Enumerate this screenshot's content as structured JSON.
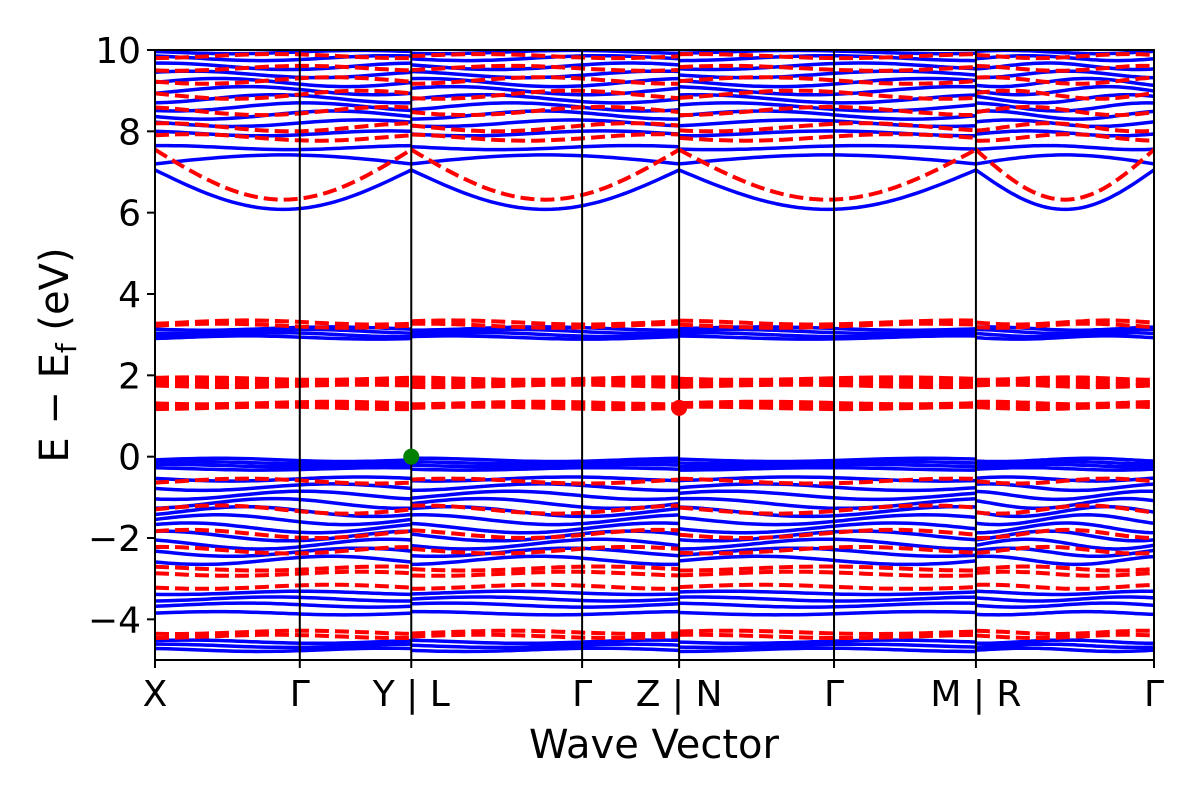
{
  "chart_data": {
    "type": "line",
    "title": "",
    "xlabel": "Wave Vector",
    "ylabel_main": "E − E",
    "ylabel_sub": "f",
    "ylabel_unit": " (eV)",
    "ylim": [
      -5,
      10
    ],
    "yticks": [
      {
        "value": -4,
        "label": "−4"
      },
      {
        "value": -2,
        "label": "−2"
      },
      {
        "value": 0,
        "label": "0"
      },
      {
        "value": 2,
        "label": "2"
      },
      {
        "value": 4,
        "label": "4"
      },
      {
        "value": 6,
        "label": "6"
      },
      {
        "value": 8,
        "label": "8"
      },
      {
        "value": 10,
        "label": "10"
      }
    ],
    "kpath_length": 6.9,
    "kpoints": [
      {
        "pos": 0.0,
        "label": "X"
      },
      {
        "pos": 1.0,
        "label": "Γ"
      },
      {
        "pos": 1.77,
        "label": "Y | L"
      },
      {
        "pos": 2.95,
        "label": "Γ"
      },
      {
        "pos": 3.62,
        "label": "Z | N"
      },
      {
        "pos": 4.69,
        "label": "Γ"
      },
      {
        "pos": 5.67,
        "label": "M | R"
      },
      {
        "pos": 6.9,
        "label": "Γ"
      }
    ],
    "segments": [
      {
        "start": 0.0,
        "end": 1.77
      },
      {
        "start": 1.77,
        "end": 3.62
      },
      {
        "start": 3.62,
        "end": 5.67
      },
      {
        "start": 5.67,
        "end": 6.9
      }
    ],
    "series": [
      {
        "spin": "up",
        "color": "#0000ff",
        "style": "solid",
        "bands": [
          {
            "shape": "cos-min",
            "e_edge": 7.05,
            "e_mid": 6.08
          },
          {
            "shape": "cos-max",
            "e_edge": 7.2,
            "e_mid": 7.42
          },
          {
            "shape": "flat",
            "e": 7.6,
            "amp": 0.05
          },
          {
            "shape": "flat",
            "e": 7.95,
            "amp": 0.06
          },
          {
            "shape": "flat",
            "e": 8.2,
            "amp": 0.08
          },
          {
            "shape": "flat",
            "e": 8.4,
            "amp": 0.1
          },
          {
            "shape": "flat",
            "e": 8.6,
            "amp": 0.1
          },
          {
            "shape": "flat",
            "e": 8.8,
            "amp": 0.1
          },
          {
            "shape": "flat",
            "e": 9.0,
            "amp": 0.1
          },
          {
            "shape": "flat",
            "e": 9.2,
            "amp": 0.1
          },
          {
            "shape": "flat",
            "e": 9.4,
            "amp": 0.08
          },
          {
            "shape": "flat",
            "e": 9.6,
            "amp": 0.08
          },
          {
            "shape": "flat",
            "e": 9.8,
            "amp": 0.06
          },
          {
            "shape": "flat",
            "e": 9.95,
            "amp": 0.04
          },
          {
            "shape": "flat",
            "e": 3.15,
            "amp": 0.04
          },
          {
            "shape": "flat",
            "e": 3.08,
            "amp": 0.05
          },
          {
            "shape": "flat",
            "e": 3.0,
            "amp": 0.05
          },
          {
            "shape": "flat",
            "e": 2.93,
            "amp": 0.04
          },
          {
            "shape": "flat",
            "e": -0.08,
            "amp": 0.04
          },
          {
            "shape": "flat",
            "e": -0.15,
            "amp": 0.03
          },
          {
            "shape": "flat",
            "e": -0.22,
            "amp": 0.03
          },
          {
            "shape": "flat",
            "e": -0.3,
            "amp": 0.03
          },
          {
            "shape": "flat",
            "e": -0.55,
            "amp": 0.05
          },
          {
            "shape": "flat",
            "e": -0.75,
            "amp": 0.08
          },
          {
            "shape": "flat",
            "e": -0.95,
            "amp": 0.1
          },
          {
            "shape": "flat",
            "e": -1.15,
            "amp": 0.12
          },
          {
            "shape": "flat",
            "e": -1.35,
            "amp": 0.12
          },
          {
            "shape": "flat",
            "e": -1.55,
            "amp": 0.12
          },
          {
            "shape": "flat",
            "e": -1.75,
            "amp": 0.12
          },
          {
            "shape": "flat",
            "e": -1.95,
            "amp": 0.12
          },
          {
            "shape": "flat",
            "e": -2.15,
            "amp": 0.12
          },
          {
            "shape": "flat",
            "e": -2.35,
            "amp": 0.1
          },
          {
            "shape": "flat",
            "e": -2.55,
            "amp": 0.1
          },
          {
            "shape": "flat",
            "e": -3.35,
            "amp": 0.04
          },
          {
            "shape": "flat",
            "e": -3.5,
            "amp": 0.05
          },
          {
            "shape": "flat",
            "e": -3.65,
            "amp": 0.05
          },
          {
            "shape": "flat",
            "e": -3.85,
            "amp": 0.04
          },
          {
            "shape": "flat",
            "e": -4.55,
            "amp": 0.04
          },
          {
            "shape": "flat",
            "e": -4.65,
            "amp": 0.04
          },
          {
            "shape": "flat",
            "e": -4.75,
            "amp": 0.04
          }
        ]
      },
      {
        "spin": "down",
        "color": "#ff0000",
        "style": "dashed",
        "bands": [
          {
            "shape": "cos-min",
            "e_edge": 7.55,
            "e_mid": 6.32
          },
          {
            "shape": "flat",
            "e": 7.85,
            "amp": 0.08
          },
          {
            "shape": "flat",
            "e": 8.1,
            "amp": 0.1
          },
          {
            "shape": "flat",
            "e": 8.5,
            "amp": 0.1
          },
          {
            "shape": "flat",
            "e": 8.9,
            "amp": 0.1
          },
          {
            "shape": "flat",
            "e": 9.25,
            "amp": 0.08
          },
          {
            "shape": "flat",
            "e": 9.55,
            "amp": 0.06
          },
          {
            "shape": "flat",
            "e": 9.85,
            "amp": 0.05
          },
          {
            "shape": "flat",
            "e": 3.3,
            "amp": 0.05
          },
          {
            "shape": "flat",
            "e": 3.22,
            "amp": 0.05
          },
          {
            "shape": "flat",
            "e": 1.92,
            "amp": 0.03
          },
          {
            "shape": "flat",
            "e": 1.86,
            "amp": 0.03
          },
          {
            "shape": "flat",
            "e": 1.8,
            "amp": 0.03
          },
          {
            "shape": "flat",
            "e": 1.74,
            "amp": 0.03
          },
          {
            "shape": "flat",
            "e": 1.32,
            "amp": 0.03
          },
          {
            "shape": "flat",
            "e": 1.26,
            "amp": 0.03
          },
          {
            "shape": "flat",
            "e": 1.2,
            "amp": 0.03
          },
          {
            "shape": "flat",
            "e": -0.6,
            "amp": 0.06
          },
          {
            "shape": "flat",
            "e": -1.3,
            "amp": 0.1
          },
          {
            "shape": "flat",
            "e": -1.9,
            "amp": 0.1
          },
          {
            "shape": "flat",
            "e": -2.3,
            "amp": 0.08
          },
          {
            "shape": "flat",
            "e": -2.75,
            "amp": 0.05
          },
          {
            "shape": "flat",
            "e": -2.88,
            "amp": 0.05
          },
          {
            "shape": "flat",
            "e": -3.2,
            "amp": 0.05
          },
          {
            "shape": "flat",
            "e": -4.32,
            "amp": 0.04
          },
          {
            "shape": "flat",
            "e": -4.42,
            "amp": 0.04
          }
        ]
      }
    ],
    "markers": [
      {
        "name": "vbm-marker",
        "k": 1.77,
        "e": 0.0,
        "color": "#008000"
      },
      {
        "name": "cbm-marker",
        "k": 3.62,
        "e": 1.2,
        "color": "#ff0000"
      }
    ],
    "grid": false,
    "legend": "none"
  }
}
